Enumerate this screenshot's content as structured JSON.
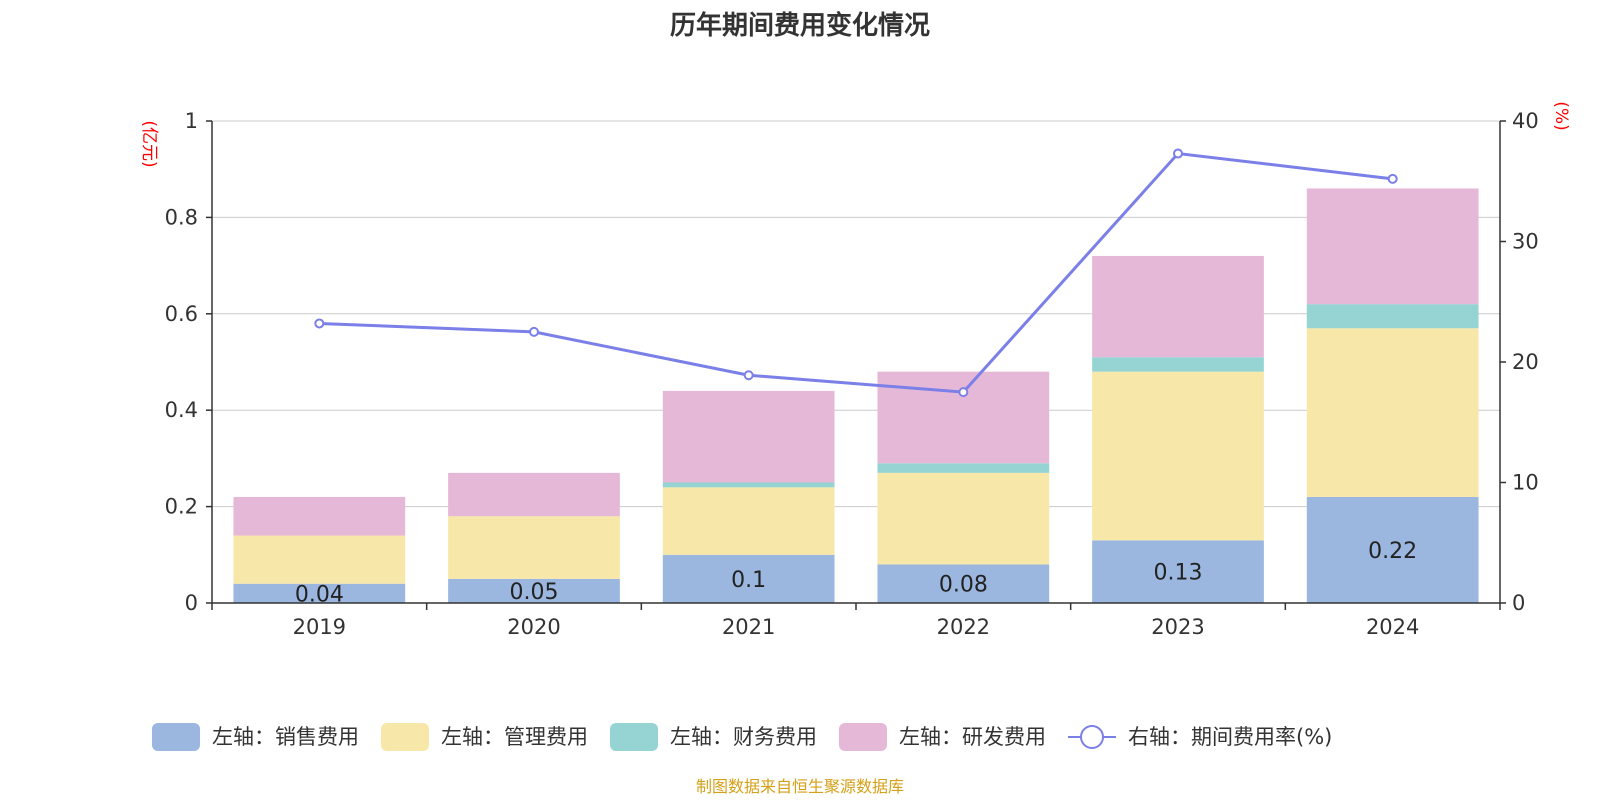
{
  "chart_data": {
    "title": "历年期间费用变化情况",
    "type": "bar+line",
    "categories": [
      "2019",
      "2020",
      "2021",
      "2022",
      "2023",
      "2024"
    ],
    "left_axis": {
      "unit": "(亿元)",
      "ylim": [
        0,
        1
      ],
      "ticks": [
        "0",
        "0.2",
        "0.4",
        "0.6",
        "0.8",
        "1"
      ]
    },
    "right_axis": {
      "unit": "(%)",
      "ylim": [
        0,
        40
      ],
      "ticks": [
        "0",
        "10",
        "20",
        "30",
        "40"
      ]
    },
    "series": [
      {
        "name": "左轴：销售费用",
        "type": "bar",
        "axis": "left",
        "color": "#9bb7e0",
        "values": [
          0.04,
          0.05,
          0.1,
          0.08,
          0.13,
          0.22
        ],
        "labels": [
          "0.04",
          "0.05",
          "0.1",
          "0.08",
          "0.13",
          "0.22"
        ]
      },
      {
        "name": "左轴：管理费用",
        "type": "bar",
        "axis": "left",
        "color": "#f7e7a8",
        "values": [
          0.1,
          0.13,
          0.14,
          0.19,
          0.35,
          0.35
        ]
      },
      {
        "name": "左轴：财务费用",
        "type": "bar",
        "axis": "left",
        "color": "#96d4d4",
        "values": [
          0.0,
          0.0,
          0.01,
          0.02,
          0.03,
          0.05
        ]
      },
      {
        "name": "左轴：研发费用",
        "type": "bar",
        "axis": "left",
        "color": "#e6b8d8",
        "values": [
          0.08,
          0.09,
          0.19,
          0.19,
          0.21,
          0.24
        ]
      },
      {
        "name": "右轴：期间费用率(%)",
        "type": "line",
        "axis": "right",
        "color": "#7b7fe8",
        "values": [
          23.2,
          22.5,
          18.9,
          17.5,
          37.3,
          35.2
        ]
      }
    ],
    "grid": true,
    "legend_position": "bottom"
  },
  "source": "制图数据来自恒生聚源数据库",
  "colors": {
    "unit_label": "#ff0000",
    "source_text": "#d4a017",
    "grid": "#cccccc",
    "axis": "#333333"
  }
}
